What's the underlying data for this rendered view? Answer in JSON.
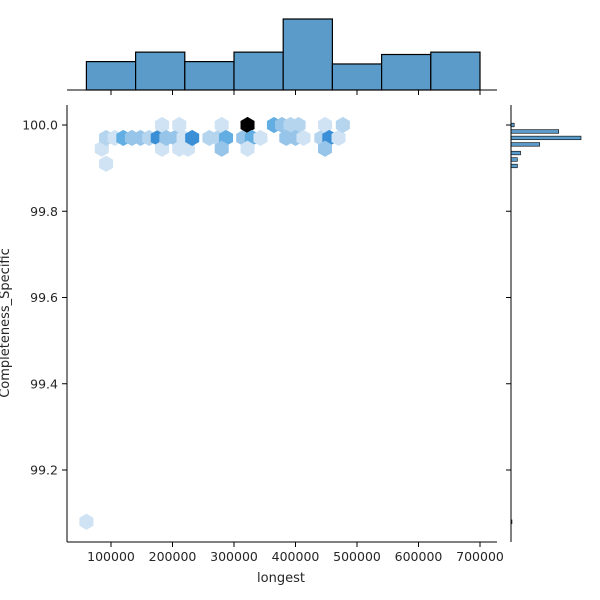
{
  "chart_data": {
    "type": "hexbin",
    "kind": "jointplot",
    "xlabel": "longest",
    "ylabel": "Completeness_Specific",
    "xlim": [
      30000,
      735000
    ],
    "ylim": [
      99.04,
      100.04
    ],
    "x_ticks": [
      100000,
      200000,
      300000,
      400000,
      500000,
      600000,
      700000
    ],
    "x_tick_labels": [
      "100000",
      "200000",
      "300000",
      "400000",
      "500000",
      "600000",
      "700000"
    ],
    "y_ticks": [
      99.2,
      99.4,
      99.6,
      99.8,
      100.0
    ],
    "y_tick_labels": [
      "99.2",
      "99.4",
      "99.6",
      "99.8",
      "100.0"
    ],
    "colors": {
      "hist_fill": "#5b9bc9",
      "hist_edge": "#000000",
      "hex_max": "#000000",
      "hex_ramp": [
        "#e3eff9",
        "#cfe3f4",
        "#b5d5ef",
        "#97c5ea",
        "#62aee3",
        "#3a8fd6",
        "#000000"
      ]
    },
    "top_hist": {
      "bin_edges": [
        60000,
        140000,
        220000,
        300000,
        380000,
        460000,
        540000,
        620000,
        700000
      ],
      "counts": [
        6,
        8,
        6,
        8,
        15,
        5.5,
        7.5,
        8
      ]
    },
    "right_hist": {
      "bins": [
        {
          "y": 100.0,
          "count": 1
        },
        {
          "y": 99.985,
          "count": 15
        },
        {
          "y": 99.97,
          "count": 22
        },
        {
          "y": 99.955,
          "count": 9
        },
        {
          "y": 99.935,
          "count": 3
        },
        {
          "y": 99.92,
          "count": 2
        },
        {
          "y": 99.905,
          "count": 2
        },
        {
          "y": 99.08,
          "count": 0.3
        }
      ]
    },
    "hexbins": [
      {
        "x": 85000,
        "y": 99.945,
        "level": 1
      },
      {
        "x": 92000,
        "y": 99.91,
        "level": 1
      },
      {
        "x": 92000,
        "y": 99.97,
        "level": 2
      },
      {
        "x": 106000,
        "y": 99.97,
        "level": 1
      },
      {
        "x": 120000,
        "y": 99.97,
        "level": 4
      },
      {
        "x": 134000,
        "y": 99.97,
        "level": 3
      },
      {
        "x": 148000,
        "y": 99.97,
        "level": 3
      },
      {
        "x": 162000,
        "y": 99.97,
        "level": 2
      },
      {
        "x": 176000,
        "y": 99.97,
        "level": 5
      },
      {
        "x": 183000,
        "y": 100.0,
        "level": 1
      },
      {
        "x": 183000,
        "y": 99.945,
        "level": 1
      },
      {
        "x": 190000,
        "y": 99.97,
        "level": 3
      },
      {
        "x": 204000,
        "y": 99.97,
        "level": 3
      },
      {
        "x": 211000,
        "y": 100.0,
        "level": 1
      },
      {
        "x": 211000,
        "y": 99.945,
        "level": 1
      },
      {
        "x": 218000,
        "y": 99.97,
        "level": 1
      },
      {
        "x": 225000,
        "y": 99.945,
        "level": 1
      },
      {
        "x": 232000,
        "y": 99.97,
        "level": 5
      },
      {
        "x": 260000,
        "y": 99.97,
        "level": 2
      },
      {
        "x": 274000,
        "y": 99.97,
        "level": 2
      },
      {
        "x": 280000,
        "y": 100.0,
        "level": 1
      },
      {
        "x": 287000,
        "y": 99.97,
        "level": 4
      },
      {
        "x": 280000,
        "y": 99.945,
        "level": 3
      },
      {
        "x": 315000,
        "y": 99.97,
        "level": 3
      },
      {
        "x": 322000,
        "y": 100.0,
        "level": 6
      },
      {
        "x": 329000,
        "y": 99.97,
        "level": 4
      },
      {
        "x": 322000,
        "y": 99.945,
        "level": 1
      },
      {
        "x": 343000,
        "y": 99.97,
        "level": 1
      },
      {
        "x": 365000,
        "y": 100.0,
        "level": 4
      },
      {
        "x": 378000,
        "y": 100.0,
        "level": 3
      },
      {
        "x": 392000,
        "y": 100.0,
        "level": 2
      },
      {
        "x": 405000,
        "y": 100.0,
        "level": 2
      },
      {
        "x": 385000,
        "y": 99.97,
        "level": 3
      },
      {
        "x": 400000,
        "y": 99.97,
        "level": 3
      },
      {
        "x": 413000,
        "y": 99.97,
        "level": 1
      },
      {
        "x": 442000,
        "y": 99.97,
        "level": 2
      },
      {
        "x": 448000,
        "y": 100.0,
        "level": 1
      },
      {
        "x": 455000,
        "y": 99.97,
        "level": 5
      },
      {
        "x": 448000,
        "y": 99.945,
        "level": 3
      },
      {
        "x": 470000,
        "y": 99.97,
        "level": 1
      },
      {
        "x": 477000,
        "y": 100.0,
        "level": 2
      },
      {
        "x": 60000,
        "y": 99.08,
        "level": 1
      }
    ]
  }
}
